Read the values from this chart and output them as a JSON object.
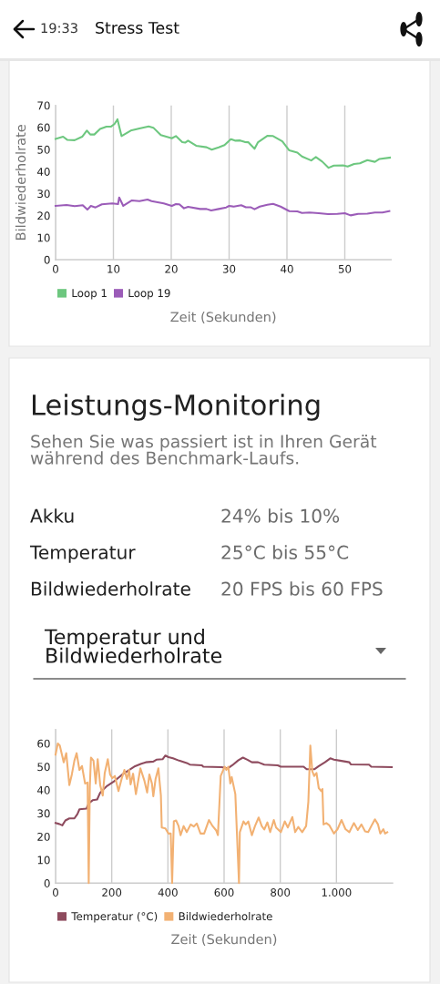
{
  "chart_data": [
    {
      "type": "line",
      "title": "Stress Test",
      "annotations": [
        "19:33"
      ],
      "xlabel": "Zeit (Sekunden)",
      "ylabel": "Bildwiederholrate",
      "xlim": [
        0,
        58
      ],
      "ylim": [
        0,
        70
      ],
      "xticks": [
        0,
        10,
        20,
        30,
        40,
        50
      ],
      "yticks": [
        0,
        10,
        20,
        30,
        40,
        50,
        60,
        70
      ],
      "grid": "x",
      "legend": "bottom",
      "series": [
        {
          "name": "Loop 1",
          "color": "#6dc77f",
          "x": [
            0,
            1.3,
            2,
            3.3,
            4.6,
            5.4,
            6,
            6.7,
            7.7,
            8.8,
            9.6,
            10.2,
            10.7,
            11.4,
            13,
            14.5,
            16.1,
            16.9,
            18.2,
            20.1,
            20.8,
            21.9,
            22.4,
            22.9,
            24.3,
            26.1,
            27,
            28.2,
            29.2,
            30.3,
            31.1,
            31.9,
            32.7,
            33.3,
            34.4,
            35,
            36.6,
            37.6,
            39.2,
            40.4,
            41.8,
            42.6,
            44.2,
            45,
            46.1,
            47.2,
            48.1,
            49.7,
            50.5,
            51.6,
            52.6,
            53.9,
            55.2,
            56,
            57.8
          ],
          "values": [
            54.8,
            55.8,
            54.4,
            54.2,
            55.8,
            58.6,
            56.8,
            56.8,
            59.3,
            60.4,
            60.4,
            61.6,
            63.7,
            56.1,
            58.6,
            59.5,
            60.5,
            59.9,
            56.5,
            55.1,
            56.1,
            53.3,
            53.1,
            54,
            51.7,
            51,
            49.9,
            51,
            52,
            54.7,
            54,
            54.1,
            53.4,
            53.3,
            50.3,
            53.3,
            56.2,
            56.1,
            53.7,
            49.6,
            48.6,
            46.8,
            45,
            46.6,
            44.5,
            41.7,
            42.7,
            42.8,
            42.3,
            43.4,
            43.7,
            45.2,
            44.4,
            45.7,
            46.3
          ]
        },
        {
          "name": "Loop 19",
          "color": "#9b5cb8",
          "x": [
            0,
            1.9,
            3.3,
            4.7,
            5.5,
            6.1,
            6.9,
            8,
            9.8,
            10.8,
            11,
            11.7,
            13.2,
            14.5,
            15.9,
            16.6,
            18.7,
            20.1,
            20.8,
            21.4,
            22.2,
            22.9,
            25,
            26.1,
            26.9,
            28.2,
            29.5,
            30,
            30.8,
            32.1,
            32.9,
            33.7,
            34.4,
            35.3,
            36.6,
            37.6,
            38.9,
            40.4,
            41.8,
            42.6,
            43.9,
            45.5,
            47.1,
            48.7,
            50,
            51,
            52.3,
            53.9,
            55.2,
            56.5,
            57.7
          ],
          "values": [
            24.4,
            24.8,
            24.3,
            24.7,
            22.7,
            24.4,
            23.7,
            25.1,
            25.5,
            25.2,
            28.2,
            24.4,
            26.9,
            26.6,
            27.3,
            26.6,
            25.5,
            24.4,
            25.2,
            25.1,
            23.3,
            24,
            23,
            23,
            22.3,
            23,
            23.7,
            24.4,
            24.1,
            24.7,
            23.8,
            23.8,
            22.9,
            24.1,
            24.9,
            25.3,
            24.1,
            22,
            21.9,
            21.2,
            21.4,
            21.1,
            20.7,
            20.8,
            21.1,
            20.1,
            20.8,
            20.9,
            21.4,
            21.4,
            22
          ]
        }
      ]
    },
    {
      "type": "other",
      "title": "Leistungs-Monitoring",
      "subtitle": "Sehen Sie was passiert ist in Ihren Gerät während des Benchmark-Laufs.",
      "annotations": [
        "Akku",
        "24% bis 10%",
        "Temperatur",
        "25°C bis 55°C",
        "Bildwiederholrate",
        "20 FPS bis 60 FPS"
      ]
    },
    {
      "type": "line",
      "title": "Temperatur und Bildwiederholrate",
      "xlabel": "Zeit (Sekunden)",
      "xlim": [
        0,
        1200
      ],
      "ylim": [
        0,
        66
      ],
      "xticks": [
        0,
        200,
        400,
        600,
        800,
        {
          "value": 1000,
          "label": "1.000"
        }
      ],
      "yticks": [
        0,
        10,
        20,
        30,
        40,
        50,
        60
      ],
      "grid": "x",
      "legend": "bottom",
      "series": [
        {
          "name": "Temperatur (°C)",
          "color": "#8e4b5e",
          "x": [
            0,
            13,
            24,
            35,
            49,
            67,
            78,
            85,
            110,
            118,
            132,
            148,
            159,
            181,
            208,
            235,
            262,
            283,
            305,
            321,
            348,
            359,
            381,
            391,
            402,
            418,
            440,
            467,
            478,
            521,
            526,
            591,
            613,
            629,
            651,
            667,
            683,
            699,
            721,
            743,
            791,
            802,
            883,
            894,
            921,
            937,
            959,
            978,
            991,
            1013,
            1046,
            1051,
            1116,
            1124,
            1197
          ],
          "values": [
            25.8,
            25.4,
            24.8,
            26.9,
            27.8,
            27.8,
            29.7,
            31.7,
            32,
            34.3,
            35.6,
            35.9,
            38.9,
            41.5,
            43.7,
            46.4,
            48.6,
            50.2,
            51.3,
            51.9,
            52.2,
            53,
            53.2,
            54.8,
            54.1,
            53.6,
            52.6,
            51.6,
            50.9,
            50.6,
            50,
            49.8,
            49.3,
            50.6,
            52.8,
            53.9,
            53,
            51.9,
            51.9,
            50.9,
            50.6,
            50,
            50,
            48.9,
            48.9,
            50.2,
            51.9,
            53.6,
            53,
            52.6,
            51.9,
            51,
            50.9,
            50,
            49.8
          ]
        },
        {
          "name": "Bildwiederholrate",
          "color": "#f2b173",
          "x": [
            0,
            8,
            15,
            24,
            29,
            38,
            49,
            58,
            67,
            75,
            85,
            94,
            105,
            114,
            118,
            122,
            126,
            135,
            143,
            150,
            159,
            168,
            175,
            186,
            194,
            202,
            211,
            224,
            235,
            245,
            254,
            262,
            267,
            276,
            286,
            302,
            316,
            326,
            334,
            343,
            348,
            356,
            366,
            375,
            378,
            391,
            402,
            410,
            415,
            421,
            429,
            438,
            445,
            456,
            467,
            481,
            492,
            503,
            516,
            529,
            546,
            559,
            572,
            578,
            588,
            597,
            602,
            608,
            615,
            622,
            627,
            640,
            646,
            653,
            656,
            669,
            677,
            686,
            699,
            710,
            723,
            734,
            743,
            754,
            764,
            777,
            785,
            802,
            816,
            827,
            843,
            853,
            864,
            878,
            892,
            900,
            907,
            914,
            921,
            929,
            937,
            946,
            950,
            954,
            964,
            975,
            991,
            1004,
            1018,
            1032,
            1046,
            1062,
            1076,
            1089,
            1102,
            1113,
            1127,
            1137,
            1148,
            1156,
            1167,
            1173,
            1181
          ],
          "values": [
            55.2,
            60,
            59.1,
            54.5,
            51.9,
            55.8,
            42.1,
            46.7,
            52.6,
            55.8,
            48.6,
            50.3,
            42.8,
            43.2,
            0,
            41.5,
            53.9,
            52.6,
            42.8,
            53.2,
            42.1,
            37.6,
            47.3,
            53.2,
            46.7,
            45.1,
            46,
            39.5,
            44.7,
            48.6,
            44.7,
            48.6,
            42.4,
            47,
            38.2,
            49.3,
            44.1,
            38.9,
            46.7,
            42.8,
            37.3,
            44.7,
            49.3,
            37.6,
            23.9,
            23.5,
            21.3,
            21.3,
            0,
            26.5,
            26.9,
            24.5,
            20.6,
            24.5,
            21.9,
            25.2,
            24.3,
            25.6,
            21.3,
            21.3,
            27.1,
            24.5,
            22.6,
            20.6,
            46,
            48.6,
            50,
            48.6,
            50,
            42.8,
            45.6,
            38.2,
            20.6,
            0,
            21.9,
            26.5,
            25.2,
            26.5,
            20.6,
            24.5,
            28.2,
            24.5,
            23,
            26.1,
            21.9,
            27.1,
            23.9,
            21.9,
            26.5,
            23.9,
            28.4,
            21.9,
            24.1,
            21.9,
            24.5,
            35,
            59.1,
            48,
            46,
            47.3,
            40.8,
            39.5,
            40.4,
            25.2,
            25.8,
            24.8,
            21.3,
            23.2,
            27.1,
            23.2,
            21.9,
            25.8,
            22.8,
            25.2,
            22.2,
            21.9,
            25.2,
            27.4,
            25.2,
            21.3,
            23.2,
            21.3,
            21.9
          ]
        }
      ]
    }
  ]
}
